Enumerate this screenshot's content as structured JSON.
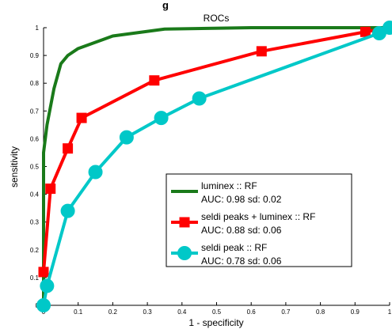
{
  "top_fragment": "g",
  "chart_data": {
    "type": "line",
    "title": "ROCs",
    "xlabel": "1 - specificity",
    "ylabel": "sensitivity",
    "xlim": [
      0,
      1
    ],
    "ylim": [
      0,
      1
    ],
    "xticks": [
      "0",
      "0.1",
      "0.2",
      "0.3",
      "0.4",
      "0.5",
      "0.6",
      "0.7",
      "0.8",
      "0.9",
      "1"
    ],
    "yticks": [
      "0",
      "0.1",
      "0.2",
      "0.3",
      "0.4",
      "0.5",
      "0.6",
      "0.7",
      "0.8",
      "0.9",
      "1"
    ],
    "grid": false,
    "legend_position": "bottom-right",
    "series": [
      {
        "name": "luminex :: RF",
        "auc_label": "AUC: 0.98 sd: 0.02",
        "color": "#1a7a1a",
        "marker": "none",
        "x": [
          0,
          0,
          0.01,
          0.03,
          0.05,
          0.07,
          0.1,
          0.2,
          0.35,
          0.6,
          0.92,
          1.0
        ],
        "y": [
          0,
          0.55,
          0.65,
          0.78,
          0.87,
          0.9,
          0.925,
          0.97,
          0.995,
          1.0,
          1.0,
          1.0
        ]
      },
      {
        "name": "seldi peaks + luminex :: RF",
        "auc_label": "AUC: 0.88 sd: 0.06",
        "color": "#ff0000",
        "marker": "square",
        "x": [
          0,
          0.02,
          0.07,
          0.11,
          0.32,
          0.63,
          0.93,
          1.0
        ],
        "y": [
          0.12,
          0.42,
          0.565,
          0.675,
          0.81,
          0.915,
          0.985,
          1.0
        ]
      },
      {
        "name": "seldi peak :: RF",
        "auc_label": "AUC: 0.78 sd: 0.06",
        "color": "#00c8c8",
        "marker": "circle",
        "x": [
          0,
          0.01,
          0.07,
          0.15,
          0.24,
          0.34,
          0.45,
          0.97,
          1.0
        ],
        "y": [
          0,
          0.07,
          0.34,
          0.48,
          0.605,
          0.675,
          0.745,
          0.98,
          1.0
        ]
      }
    ]
  }
}
